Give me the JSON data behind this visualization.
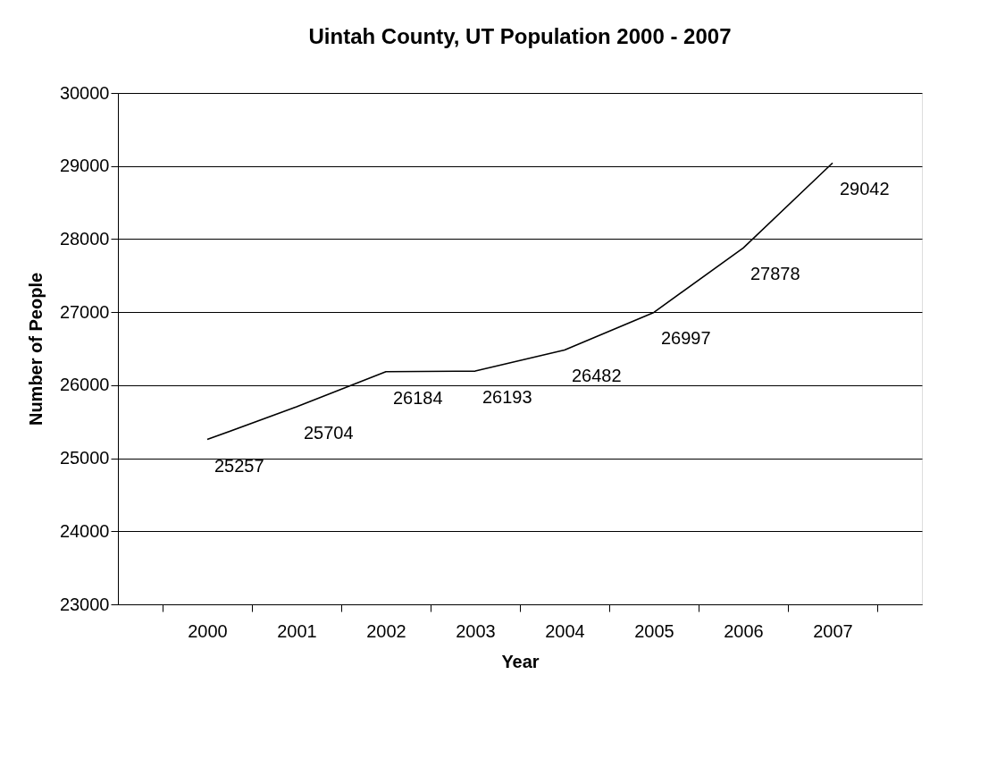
{
  "chart_data": {
    "type": "line",
    "title": "Uintah County, UT Population 2000 - 2007",
    "xlabel": "Year",
    "ylabel": "Number of People",
    "categories": [
      "2000",
      "2001",
      "2002",
      "2003",
      "2004",
      "2005",
      "2006",
      "2007"
    ],
    "series": [
      {
        "color": "#000000",
        "values": [
          25257,
          25704,
          26184,
          26193,
          26482,
          26997,
          27878,
          29042
        ]
      }
    ],
    "ylim": [
      23000,
      30000
    ],
    "yticks": [
      23000,
      24000,
      25000,
      26000,
      27000,
      28000,
      29000,
      30000
    ],
    "grid": "y",
    "data_labels": true,
    "marker": "none",
    "line_style": "solid"
  }
}
